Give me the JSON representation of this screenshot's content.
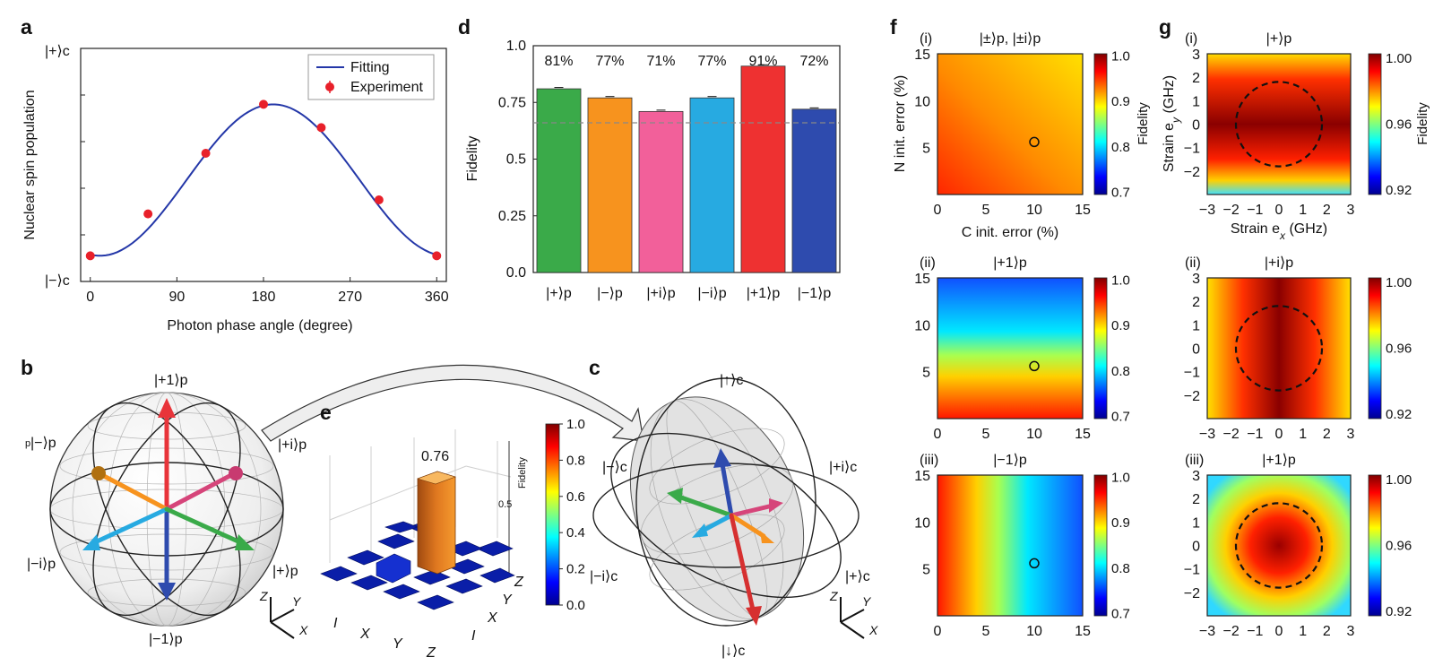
{
  "panel_labels": {
    "a": "a",
    "b": "b",
    "c": "c",
    "d": "d",
    "e": "e",
    "f": "f",
    "g": "g"
  },
  "chart_data": [
    {
      "id": "a",
      "type": "line",
      "xlabel": "Photon phase angle (degree)",
      "ylabel": "Nuclear spin population",
      "ytick_top": "|+⟩c",
      "ytick_bottom": "|−⟩c",
      "xlim": [
        -10,
        370
      ],
      "ylim": [
        0,
        1
      ],
      "xticks": [
        0,
        90,
        180,
        270,
        360
      ],
      "legend": [
        "Fitting",
        "Experiment"
      ],
      "legend_position": "top-right",
      "fit": {
        "center": 190,
        "min": 0.11,
        "max": 0.76
      },
      "experiment": {
        "x": [
          0,
          60,
          120,
          180,
          240,
          300,
          360
        ],
        "y": [
          0.11,
          0.29,
          0.55,
          0.76,
          0.66,
          0.35,
          0.11
        ]
      }
    },
    {
      "id": "d",
      "type": "bar",
      "ylabel": "Fidelity",
      "ylim": [
        0,
        1
      ],
      "yticks": [
        "0.0",
        "0.25",
        "0.5",
        "0.75",
        "1.0"
      ],
      "categories": [
        "|+⟩p",
        "|−⟩p",
        "|+i⟩p",
        "|−i⟩p",
        "|+1⟩p",
        "|−1⟩p"
      ],
      "values": [
        0.81,
        0.77,
        0.71,
        0.77,
        0.91,
        0.72
      ],
      "labels": [
        "81%",
        "77%",
        "71%",
        "77%",
        "91%",
        "72%"
      ],
      "colors": [
        "#3aaa49",
        "#f7931e",
        "#f2609a",
        "#27aae1",
        "#ee3131",
        "#2e4bae"
      ],
      "threshold": 0.66
    },
    {
      "id": "e",
      "type": "bar3d",
      "zlabel": "Fidelity",
      "x_categories": [
        "I",
        "X",
        "Y",
        "Z"
      ],
      "y_categories": [
        "Z",
        "Y",
        "X",
        "I"
      ],
      "peak_value": 0.76,
      "peak_label": "0.76",
      "colorbar_ticks": [
        "0.0",
        "0.2",
        "0.4",
        "0.6",
        "0.8",
        "1.0"
      ],
      "z_tick": "0.5"
    },
    {
      "id": "f",
      "type": "heatmap",
      "colorbar_label": "Fidelity",
      "colorbar_ticks": [
        "0.7",
        "0.8",
        "0.9",
        "1.0"
      ],
      "xlabel": "C init. error (%)",
      "ylabel": "N init. error (%)",
      "ticks": [
        "0",
        "5",
        "10",
        "15"
      ],
      "marker": [
        10,
        5.6
      ],
      "panels": [
        {
          "label": "(i)",
          "state": "|±⟩p, |±i⟩p"
        },
        {
          "label": "(ii)",
          "state": "|+1⟩p"
        },
        {
          "label": "(iii)",
          "state": "|−1⟩p"
        }
      ]
    },
    {
      "id": "g",
      "type": "heatmap",
      "colorbar_label": "Fidelity",
      "colorbar_ticks": [
        "0.92",
        "0.96",
        "1.00"
      ],
      "xlabel": "Strain e",
      "xlabel_sub": "x",
      "xlabel_unit": " (GHz)",
      "ylabel": "Strain e",
      "ylabel_sub": "y",
      "ylabel_unit": " (GHz)",
      "xticks": [
        "−3",
        "−2",
        "−1",
        "0",
        "1",
        "2",
        "3"
      ],
      "yticks": [
        "3",
        "2",
        "1",
        "0",
        "−1",
        "−2"
      ],
      "circle_radius": 1.8,
      "panels": [
        {
          "label": "(i)",
          "state": "|+⟩p"
        },
        {
          "label": "(ii)",
          "state": "|+i⟩p"
        },
        {
          "label": "(iii)",
          "state": "|+1⟩p"
        }
      ]
    }
  ],
  "sphere_b": {
    "top": "|+1⟩p",
    "bottom": "|−1⟩p",
    "left_upper": "|−⟩p",
    "left_upper_prefix": "p",
    "right_upper": "|+i⟩p",
    "left_lower": "|−i⟩p",
    "right_lower": "|+⟩p",
    "axes": [
      "Z",
      "Y",
      "X"
    ],
    "arrow_colors": [
      "#e8343a",
      "#2e4bae",
      "#f7931e",
      "#d6457a",
      "#27aae1",
      "#3aaa49"
    ]
  },
  "sphere_c": {
    "top": "|↑⟩c",
    "bottom": "|↓⟩c",
    "left_upper": "|−⟩c",
    "right_upper": "|+i⟩c",
    "left_lower": "|−i⟩c",
    "right_lower": "|+⟩c",
    "axes": [
      "Z",
      "Y",
      "X"
    ]
  }
}
